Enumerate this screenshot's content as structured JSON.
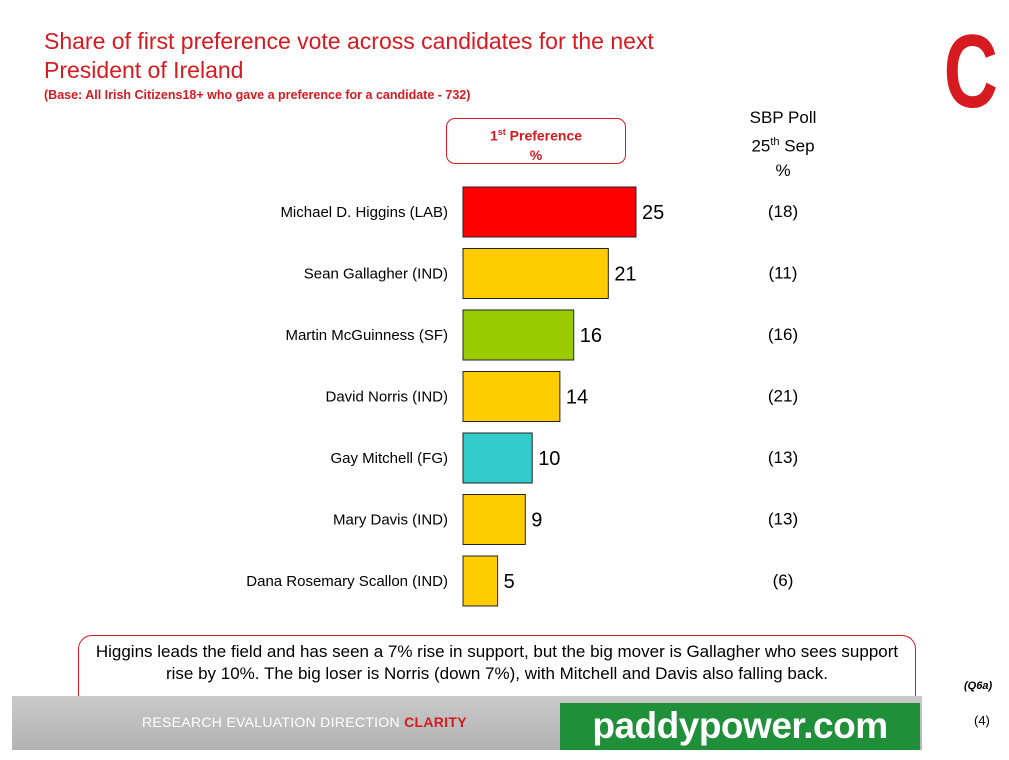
{
  "title_lines": [
    "Share of first preference vote across candidates for the next",
    "President of Ireland"
  ],
  "base_note": "(Base: All Irish Citizens18+ who gave a preference for a candidate - 732)",
  "brand_logo_letter": "C",
  "pref_header": {
    "line1_pre": "1",
    "line1_sup": "st",
    "line1_post": " Preference",
    "line2": "%"
  },
  "sbp_header": {
    "line1": "SBP Poll",
    "line2_pre": "25",
    "line2_sup": "th",
    "line2_post": " Sep",
    "line3": "%"
  },
  "chart_data": {
    "type": "bar",
    "orientation": "horizontal",
    "categories": [
      "Michael D. Higgins (LAB)",
      "Sean Gallagher (IND)",
      "Martin McGuinness (SF)",
      "David Norris (IND)",
      "Gay Mitchell (FG)",
      "Mary Davis (IND)",
      "Dana Rosemary Scallon (IND)"
    ],
    "values": [
      25,
      21,
      16,
      14,
      10,
      9,
      5
    ],
    "bar_colors": [
      "#ff0000",
      "#ffcc00",
      "#99cc00",
      "#ffcc00",
      "#33cccc",
      "#ffcc00",
      "#ffcc00"
    ],
    "comparison": [
      "(18)",
      "(11)",
      "(16)",
      "(21)",
      "(13)",
      "(13)",
      "(6)"
    ],
    "xlim": [
      0,
      25
    ],
    "grid": false,
    "legend": "none"
  },
  "summary_text": "Higgins leads the field and has seen a 7% rise in support, but the big mover is Gallagher who sees support rise by 10%.  The big loser is Norris (down 7%), with Mitchell and Davis also falling back.",
  "question_ref": "(Q6a)",
  "footer": {
    "tagline": "RESEARCH EVALUATION DIRECTION ",
    "brand": "CLARITY"
  },
  "sponsor_logo": "paddypower.com",
  "page_number": "(4)",
  "colors": {
    "accent": "#d71920",
    "sponsor_green": "#1f8f3a",
    "bar_border": "#222222"
  }
}
